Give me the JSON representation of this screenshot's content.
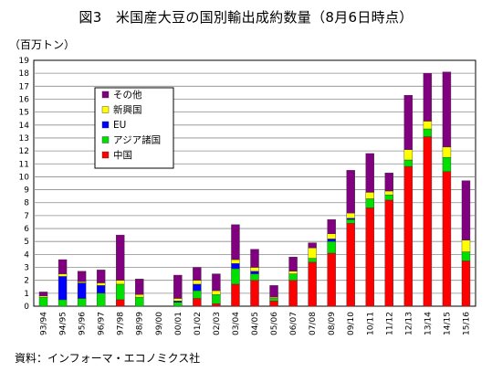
{
  "title": "図3　米国産大豆の国別輸出成約数量（8月6日時点）",
  "unit_label": "（百万トン）",
  "source": "資料：インフォーマ・エコノミクス社",
  "chart_data": {
    "type": "bar",
    "stacked": true,
    "title": "図3　米国産大豆の国別輸出成約数量（8月6日時点）",
    "ylabel": "（百万トン）",
    "xlabel": "",
    "ylim": [
      0,
      19
    ],
    "yticks": [
      0,
      1,
      2,
      3,
      4,
      5,
      6,
      7,
      8,
      9,
      10,
      11,
      12,
      13,
      14,
      15,
      16,
      17,
      18,
      19
    ],
    "grid": true,
    "legend_position": "top-left",
    "categories": [
      "93/94",
      "94/95",
      "95/96",
      "96/97",
      "97/98",
      "98/99",
      "99/00",
      "00/01",
      "01/02",
      "02/03",
      "03/04",
      "04/05",
      "05/06",
      "06/07",
      "07/08",
      "08/09",
      "09/10",
      "10/11",
      "11/12",
      "12/13",
      "13/14",
      "14/15",
      "15/16"
    ],
    "series": [
      {
        "name": "中国",
        "color": "#ff0000",
        "values": [
          0.0,
          0.0,
          0.0,
          0.0,
          0.5,
          0.0,
          0.0,
          0.0,
          0.6,
          0.2,
          1.7,
          2.0,
          0.4,
          2.0,
          3.4,
          4.1,
          6.4,
          7.6,
          8.2,
          10.8,
          13.1,
          10.4,
          3.5
        ]
      },
      {
        "name": "アジア諸国",
        "color": "#00e000",
        "values": [
          0.7,
          0.5,
          0.6,
          1.0,
          1.2,
          0.7,
          0.0,
          0.3,
          0.6,
          0.7,
          1.2,
          0.5,
          0.2,
          0.5,
          0.3,
          0.9,
          0.3,
          0.7,
          0.4,
          0.5,
          0.6,
          1.1,
          0.7
        ]
      },
      {
        "name": "EU",
        "color": "#0000ff",
        "values": [
          0.0,
          1.8,
          1.2,
          0.6,
          0.0,
          0.0,
          0.0,
          0.1,
          0.5,
          0.0,
          0.4,
          0.2,
          0.0,
          0.0,
          0.0,
          0.2,
          0.1,
          0.0,
          0.0,
          0.0,
          0.0,
          0.0,
          0.0
        ]
      },
      {
        "name": "新興国",
        "color": "#ffff00",
        "values": [
          0.1,
          0.2,
          0.1,
          0.2,
          0.3,
          0.2,
          0.0,
          0.2,
          0.3,
          0.3,
          0.3,
          0.3,
          0.1,
          0.2,
          0.8,
          0.4,
          0.4,
          0.5,
          0.3,
          0.8,
          0.6,
          0.8,
          0.9
        ]
      },
      {
        "name": "その他",
        "color": "#800080",
        "values": [
          0.3,
          1.1,
          0.8,
          1.0,
          3.5,
          1.2,
          0.0,
          1.8,
          1.0,
          1.3,
          2.7,
          1.4,
          0.9,
          1.1,
          0.4,
          1.1,
          3.3,
          3.0,
          1.4,
          4.2,
          3.7,
          5.8,
          4.6
        ]
      }
    ]
  }
}
